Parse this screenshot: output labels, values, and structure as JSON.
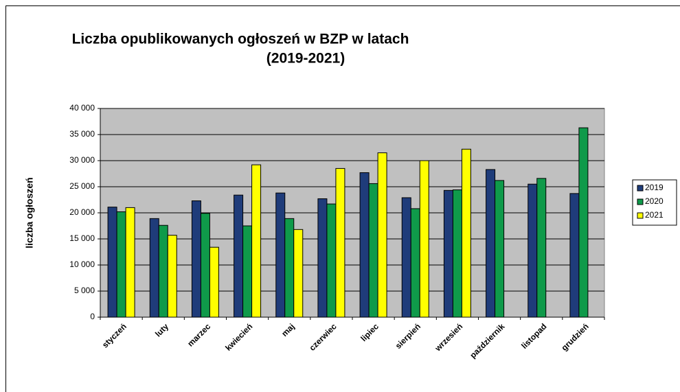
{
  "chart_data": {
    "type": "bar",
    "title": [
      "Liczba opublikowanych ogłoszeń w BZP w latach",
      "(2019-2021)"
    ],
    "ylabel": "liczba ogłoszeń",
    "categories": [
      "styczeń",
      "luty",
      "marzec",
      "kwiecień",
      "maj",
      "czerwiec",
      "lipiec",
      "sierpień",
      "wrzesień",
      "październik",
      "listopad",
      "grudzień"
    ],
    "series": [
      {
        "name": "2019",
        "color": "#1f3c7a",
        "values": [
          21100,
          18900,
          22300,
          23400,
          23800,
          22700,
          27700,
          22900,
          24300,
          28300,
          25500,
          23700
        ]
      },
      {
        "name": "2020",
        "color": "#0f9a4a",
        "values": [
          20200,
          17600,
          19900,
          17500,
          18900,
          21700,
          25600,
          20800,
          24400,
          26200,
          26600,
          36300
        ]
      },
      {
        "name": "2021",
        "color": "#ffff00",
        "values": [
          21000,
          15700,
          13400,
          29200,
          16800,
          28500,
          31500,
          30000,
          32200,
          null,
          null,
          null
        ]
      }
    ],
    "ylim": [
      0,
      40000
    ],
    "yticks": [
      0,
      {
        "value": 5000,
        "label": "5 000"
      },
      {
        "value": 10000,
        "label": "10 000"
      },
      {
        "value": 15000,
        "label": "15 000"
      },
      {
        "value": 20000,
        "label": "20 000"
      },
      {
        "value": 25000,
        "label": "25 000"
      },
      {
        "value": 30000,
        "label": "30 000"
      },
      {
        "value": 35000,
        "label": "35 000"
      },
      {
        "value": 40000,
        "label": "40 000"
      }
    ],
    "grid": true,
    "legend": "right",
    "plot_background": "#c0c0c0"
  }
}
